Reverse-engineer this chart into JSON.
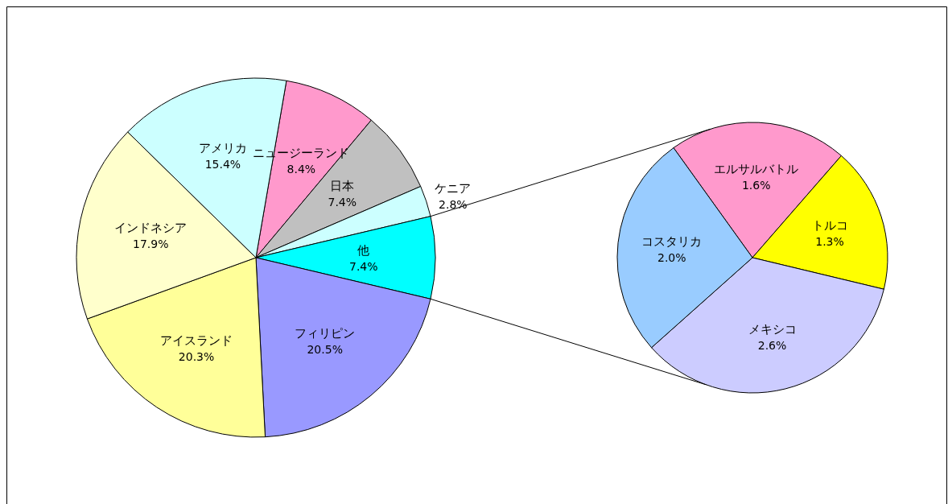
{
  "chart_data": [
    {
      "type": "pie",
      "categories": [
        "ニュージーランド",
        "日本",
        "ケニア",
        "他",
        "フィリピン",
        "アイスランド",
        "インドネシア",
        "アメリカ"
      ],
      "values": [
        8.4,
        7.4,
        2.8,
        7.4,
        20.5,
        20.3,
        17.9,
        15.4
      ],
      "colors": [
        "#ff99cc",
        "#c0c0c0",
        "#ccffff",
        "#00ffff",
        "#9999ff",
        "#ffff99",
        "#ffffcc",
        "#ccffff"
      ],
      "value_labels": [
        "8.4%",
        "7.4%",
        "2.8%",
        "7.4%",
        "20.5%",
        "20.3%",
        "17.9%",
        "15.4%"
      ]
    },
    {
      "type": "pie",
      "categories": [
        "エルサルバトル",
        "トルコ",
        "メキシコ",
        "コスタリカ"
      ],
      "values": [
        1.6,
        1.3,
        2.6,
        2.0
      ],
      "colors": [
        "#ff99cc",
        "#ffff00",
        "#ccccff",
        "#99ccff"
      ],
      "value_labels": [
        "1.6%",
        "1.3%",
        "2.6%",
        "2.0%"
      ]
    }
  ]
}
